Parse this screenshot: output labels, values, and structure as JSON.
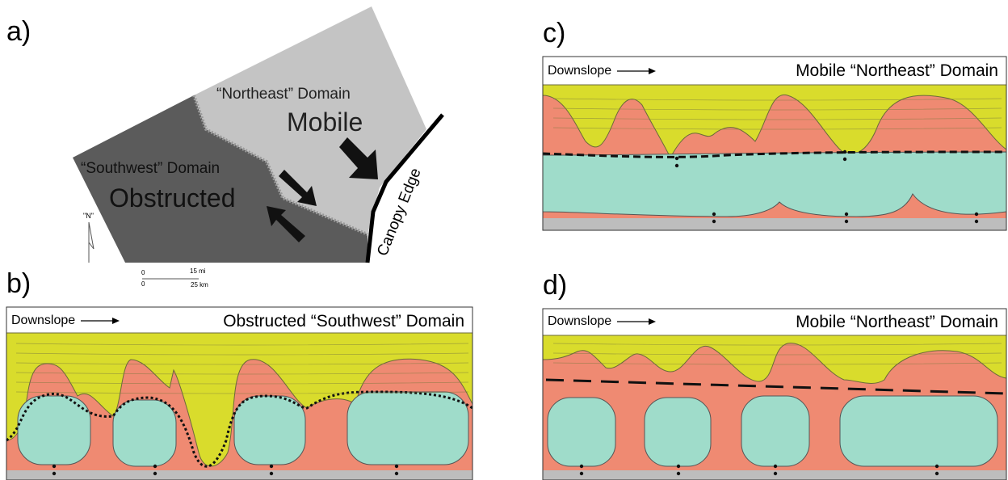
{
  "map": {
    "label": "a)",
    "northeast_domain": "“Northeast” Domain",
    "mobile": "Mobile",
    "southwest_domain": "“Southwest” Domain",
    "obstructed": "Obstructed",
    "canopy_edge": "Canopy Edge",
    "north": "\"N\"",
    "scale": [
      "0",
      "15 mi",
      "0",
      "25 km"
    ]
  },
  "sections": [
    {
      "label": "b)",
      "downslope": "Downslope",
      "title": "Obstructed “Southwest” Domain"
    },
    {
      "label": "c)",
      "downslope": "Downslope",
      "title": "Mobile “Northeast” Domain"
    },
    {
      "label": "d)",
      "downslope": "Downslope",
      "title": "Mobile “Northeast” Domain"
    }
  ]
}
